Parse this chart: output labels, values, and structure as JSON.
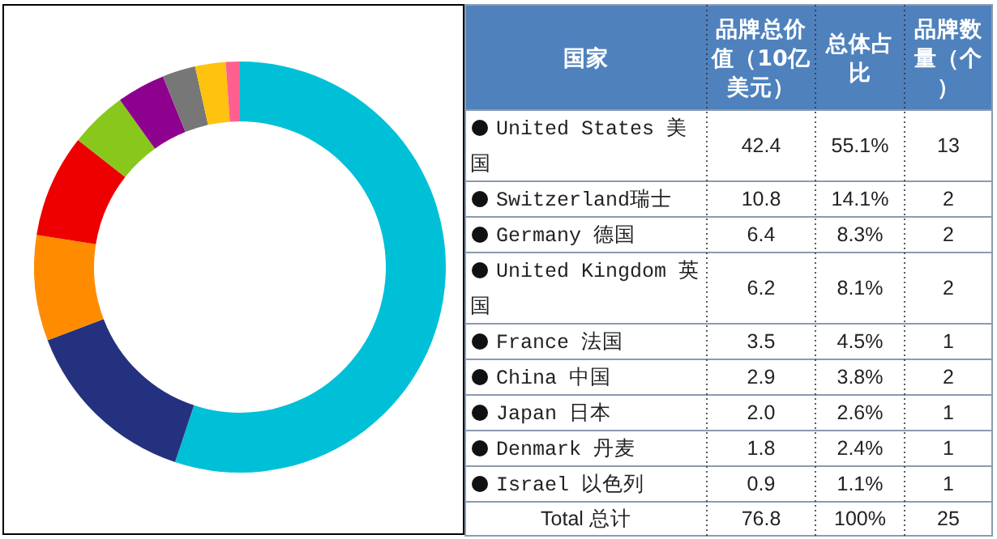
{
  "chart_data": [
    {
      "type": "donut",
      "categories": [
        null,
        null,
        null,
        null,
        null,
        null,
        null,
        null,
        null
      ],
      "values": [
        55.1,
        14.1,
        8.3,
        8.1,
        4.5,
        3.8,
        2.6,
        2.4,
        1.1
      ],
      "colors": [
        "#00c0d8",
        "#24317f",
        "#ff8c00",
        "#ee0000",
        "#88c81c",
        "#8e008e",
        "#777777",
        "#ffc20e",
        "#ff5f8f"
      ]
    },
    {
      "type": "other",
      "annotations": [
        "国家",
        "品牌总价值（10亿美元）",
        "总体占比",
        "品牌数量（个）",
        "United States 美国",
        "42.4",
        "55.1%",
        "13",
        "Switzerland瑞士",
        "10.8",
        "14.1%",
        "2",
        "Germany 德国",
        "6.4",
        "8.3%",
        "2",
        "United Kingdom 英国",
        "6.2",
        "8.1%",
        "2",
        "France 法国",
        "3.5",
        "4.5%",
        "1",
        "China 中国",
        "2.9",
        "3.8%",
        "2",
        "Japan 日本",
        "2.0",
        "2.6%",
        "1",
        "Denmark 丹麦",
        "1.8",
        "2.4%",
        "1",
        "Israel 以色列",
        "0.9",
        "1.1%",
        "1",
        "Total 总计",
        "76.8",
        "100%",
        "25"
      ]
    }
  ]
}
